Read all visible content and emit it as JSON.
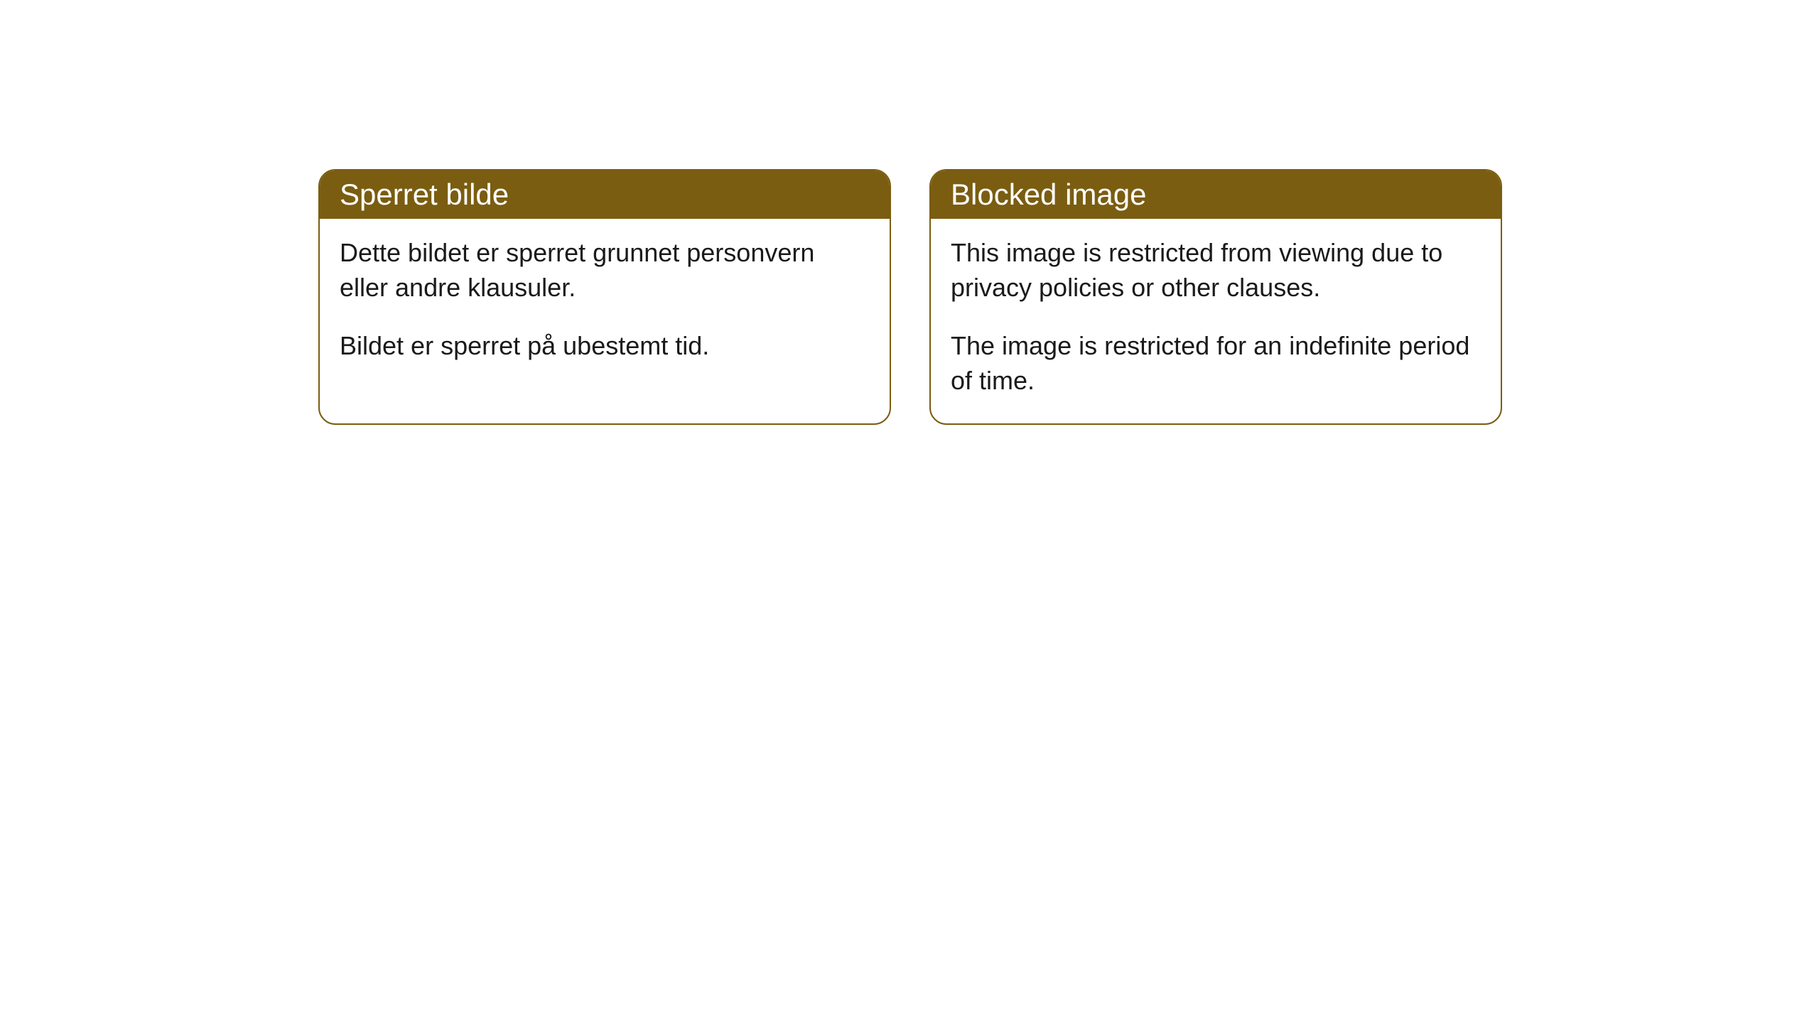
{
  "styling": {
    "card_border_color": "#7a5d11",
    "card_header_bg": "#7a5d11",
    "card_header_text_color": "#ffffff",
    "card_body_bg": "#ffffff",
    "card_body_text_color": "#1a1a1a",
    "card_border_radius": 24,
    "header_font_size": 42,
    "body_font_size": 36,
    "page_bg": "#ffffff"
  },
  "cards": {
    "left": {
      "title": "Sperret bilde",
      "paragraph1": "Dette bildet er sperret grunnet personvern eller andre klausuler.",
      "paragraph2": "Bildet er sperret på ubestemt tid."
    },
    "right": {
      "title": "Blocked image",
      "paragraph1": "This image is restricted from viewing due to privacy policies or other clauses.",
      "paragraph2": "The image is restricted for an indefinite period of time."
    }
  }
}
